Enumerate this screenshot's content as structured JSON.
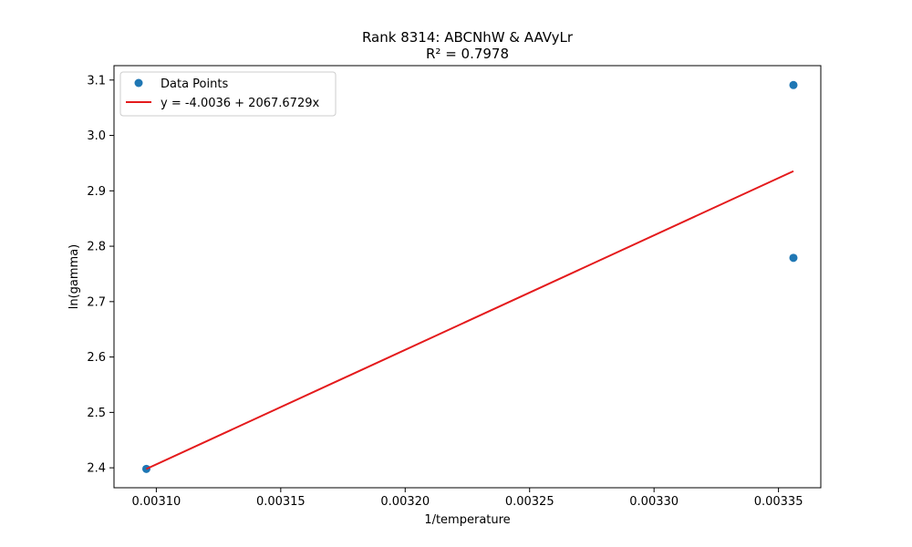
{
  "chart_data": {
    "type": "scatter",
    "title": "Rank 8314: ABCNhW & AAVyLr",
    "subtitle": "R² = 0.7978",
    "xlabel": "1/temperature",
    "ylabel": "ln(gamma)",
    "xlim": [
      0.003083,
      0.003367
    ],
    "ylim": [
      2.364,
      3.126
    ],
    "x_ticks": [
      0.0031,
      0.00315,
      0.0032,
      0.00325,
      0.0033,
      0.00335
    ],
    "x_tick_labels": [
      "0.00310",
      "0.00315",
      "0.00320",
      "0.00325",
      "0.00330",
      "0.00335"
    ],
    "y_ticks": [
      2.4,
      2.5,
      2.6,
      2.7,
      2.8,
      2.9,
      3.0,
      3.1
    ],
    "y_tick_labels": [
      "2.4",
      "2.5",
      "2.6",
      "2.7",
      "2.8",
      "2.9",
      "3.0",
      "3.1"
    ],
    "grid": false,
    "legend_position": "top-left",
    "series": [
      {
        "name": "Data Points",
        "kind": "scatter",
        "color": "#1f77b4",
        "x": [
          0.003096,
          0.003356,
          0.003356
        ],
        "y": [
          2.398,
          3.091,
          2.779
        ]
      },
      {
        "name": "y = -4.0036 + 2067.6729x",
        "kind": "line",
        "color": "#e41a1c",
        "intercept": -4.0036,
        "slope": 2067.6729,
        "x": [
          0.003096,
          0.003356
        ]
      }
    ]
  }
}
